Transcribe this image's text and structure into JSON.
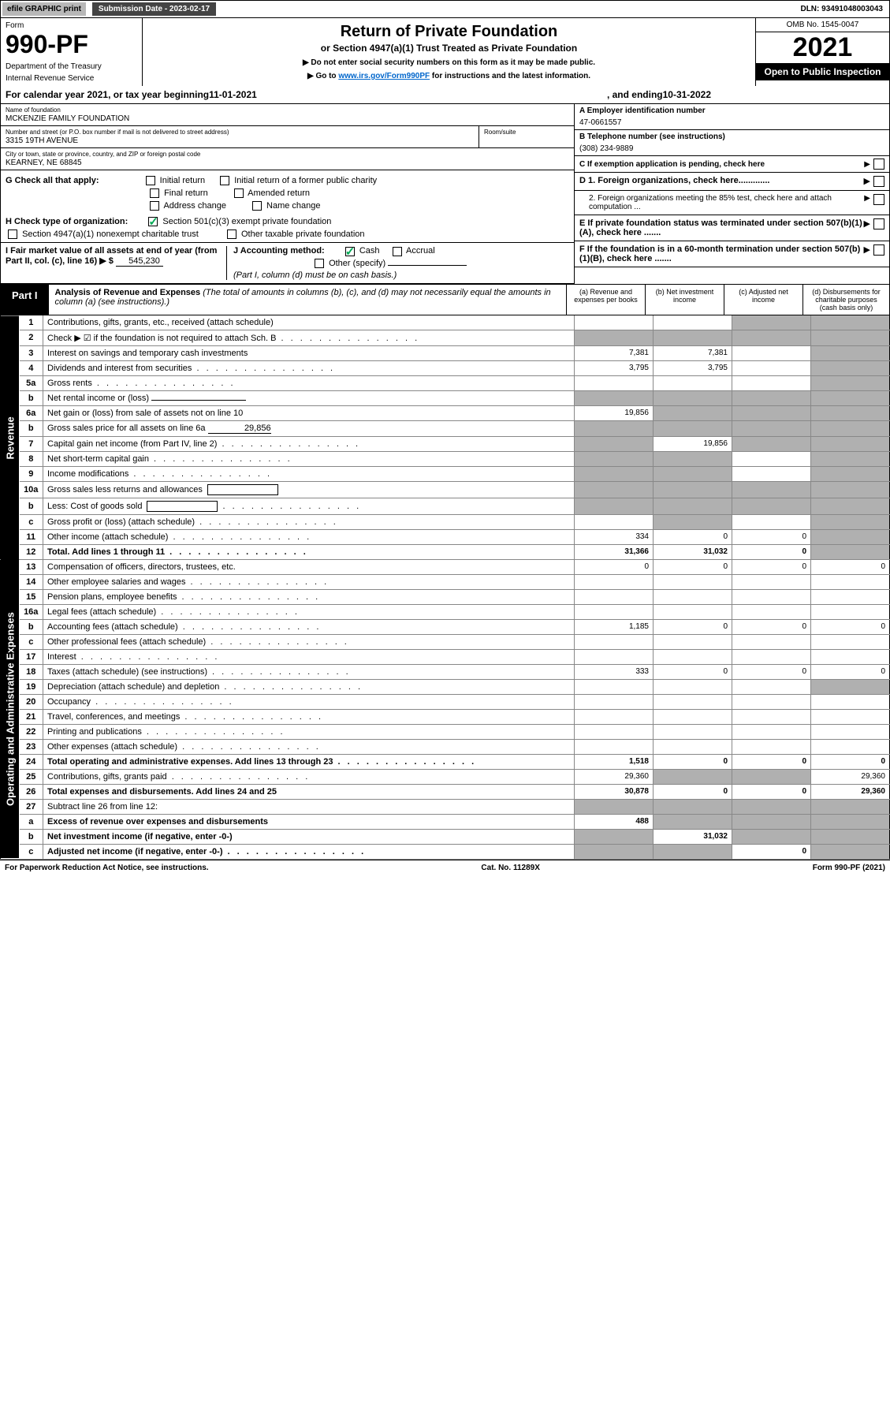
{
  "colors": {
    "header_gray": "#b8b8b8",
    "dark_gray": "#444444",
    "black": "#000000",
    "white": "#ffffff",
    "link_blue": "#0066cc",
    "shaded_cell": "#b0b0b0",
    "check_green": "#00aa55",
    "border_light": "#888888"
  },
  "topbar": {
    "efile": "efile GRAPHIC print",
    "sub_label": "Submission Date - 2023-02-17",
    "dln": "DLN: 93491048003043"
  },
  "header": {
    "form_label": "Form",
    "form_no": "990-PF",
    "dept": "Department of the Treasury",
    "irs": "Internal Revenue Service",
    "title1": "Return of Private Foundation",
    "title2": "or Section 4947(a)(1) Trust Treated as Private Foundation",
    "note1": "▶ Do not enter social security numbers on this form as it may be made public.",
    "note2_pre": "▶ Go to ",
    "note2_link": "www.irs.gov/Form990PF",
    "note2_post": " for instructions and the latest information.",
    "omb": "OMB No. 1545-0047",
    "year": "2021",
    "open": "Open to Public Inspection"
  },
  "cal_year": {
    "pre": "For calendar year 2021, or tax year beginning ",
    "begin": "11-01-2021",
    "mid": " , and ending ",
    "end": "10-31-2022"
  },
  "info": {
    "name_label": "Name of foundation",
    "name": "MCKENZIE FAMILY FOUNDATION",
    "addr_label": "Number and street (or P.O. box number if mail is not delivered to street address)",
    "addr": "3315 19TH AVENUE",
    "room_label": "Room/suite",
    "city_label": "City or town, state or province, country, and ZIP or foreign postal code",
    "city": "KEARNEY, NE  68845",
    "a_label": "A Employer identification number",
    "a_val": "47-0661557",
    "b_label": "B Telephone number (see instructions)",
    "b_val": "(308) 234-9889",
    "c_label": "C If exemption application is pending, check here",
    "d1_label": "D 1. Foreign organizations, check here.............",
    "d2_label": "2. Foreign organizations meeting the 85% test, check here and attach computation ...",
    "e_label": "E  If private foundation status was terminated under section 507(b)(1)(A), check here .......",
    "f_label": "F  If the foundation is in a 60-month termination under section 507(b)(1)(B), check here ......."
  },
  "g": {
    "label": "G Check all that apply:",
    "o1": "Initial return",
    "o2": "Initial return of a former public charity",
    "o3": "Final return",
    "o4": "Amended return",
    "o5": "Address change",
    "o6": "Name change"
  },
  "h": {
    "label": "H Check type of organization:",
    "o1": "Section 501(c)(3) exempt private foundation",
    "o2": "Section 4947(a)(1) nonexempt charitable trust",
    "o3": "Other taxable private foundation"
  },
  "i": {
    "label": "I Fair market value of all assets at end of year (from Part II, col. (c), line 16) ▶ $",
    "val": "545,230"
  },
  "j": {
    "label": "J Accounting method:",
    "o1": "Cash",
    "o2": "Accrual",
    "o3": "Other (specify)",
    "note": "(Part I, column (d) must be on cash basis.)"
  },
  "part1": {
    "tab": "Part I",
    "title": "Analysis of Revenue and Expenses",
    "desc": " (The total of amounts in columns (b), (c), and (d) may not necessarily equal the amounts in column (a) (see instructions).)",
    "col_a": "(a) Revenue and expenses per books",
    "col_b": "(b) Net investment income",
    "col_c": "(c) Adjusted net income",
    "col_d": "(d) Disbursements for charitable purposes (cash basis only)"
  },
  "side_labels": {
    "revenue": "Revenue",
    "opex": "Operating and Administrative Expenses"
  },
  "rows": [
    {
      "n": "1",
      "label": "Contributions, gifts, grants, etc., received (attach schedule)",
      "a": "",
      "b": "",
      "c": "s",
      "d": "s"
    },
    {
      "n": "2",
      "label": "Check ▶ ☑ if the foundation is not required to attach Sch. B",
      "a": "s",
      "b": "s",
      "c": "s",
      "d": "s",
      "dots": true
    },
    {
      "n": "3",
      "label": "Interest on savings and temporary cash investments",
      "a": "7,381",
      "b": "7,381",
      "c": "",
      "d": "s"
    },
    {
      "n": "4",
      "label": "Dividends and interest from securities",
      "a": "3,795",
      "b": "3,795",
      "c": "",
      "d": "s",
      "dots": true
    },
    {
      "n": "5a",
      "label": "Gross rents",
      "a": "",
      "b": "",
      "c": "",
      "d": "s",
      "dots": true
    },
    {
      "n": "b",
      "label": "Net rental income or (loss)",
      "a": "s",
      "b": "s",
      "c": "s",
      "d": "s",
      "inline": true
    },
    {
      "n": "6a",
      "label": "Net gain or (loss) from sale of assets not on line 10",
      "a": "19,856",
      "b": "s",
      "c": "s",
      "d": "s"
    },
    {
      "n": "b",
      "label": "Gross sales price for all assets on line 6a",
      "a": "s",
      "b": "s",
      "c": "s",
      "d": "s",
      "inline_val": "29,856"
    },
    {
      "n": "7",
      "label": "Capital gain net income (from Part IV, line 2)",
      "a": "s",
      "b": "19,856",
      "c": "s",
      "d": "s",
      "dots": true
    },
    {
      "n": "8",
      "label": "Net short-term capital gain",
      "a": "s",
      "b": "s",
      "c": "",
      "d": "s",
      "dots": true
    },
    {
      "n": "9",
      "label": "Income modifications",
      "a": "s",
      "b": "s",
      "c": "",
      "d": "s",
      "dots": true
    },
    {
      "n": "10a",
      "label": "Gross sales less returns and allowances",
      "a": "s",
      "b": "s",
      "c": "s",
      "d": "s",
      "box": true
    },
    {
      "n": "b",
      "label": "Less: Cost of goods sold",
      "a": "s",
      "b": "s",
      "c": "s",
      "d": "s",
      "box": true,
      "dots": true
    },
    {
      "n": "c",
      "label": "Gross profit or (loss) (attach schedule)",
      "a": "",
      "b": "s",
      "c": "",
      "d": "s",
      "dots": true
    },
    {
      "n": "11",
      "label": "Other income (attach schedule)",
      "a": "334",
      "b": "0",
      "c": "0",
      "d": "s",
      "dots": true
    },
    {
      "n": "12",
      "label": "Total. Add lines 1 through 11",
      "a": "31,366",
      "b": "31,032",
      "c": "0",
      "d": "s",
      "bold": true,
      "dots": true
    },
    {
      "n": "13",
      "label": "Compensation of officers, directors, trustees, etc.",
      "a": "0",
      "b": "0",
      "c": "0",
      "d": "0"
    },
    {
      "n": "14",
      "label": "Other employee salaries and wages",
      "a": "",
      "b": "",
      "c": "",
      "d": "",
      "dots": true
    },
    {
      "n": "15",
      "label": "Pension plans, employee benefits",
      "a": "",
      "b": "",
      "c": "",
      "d": "",
      "dots": true
    },
    {
      "n": "16a",
      "label": "Legal fees (attach schedule)",
      "a": "",
      "b": "",
      "c": "",
      "d": "",
      "dots": true
    },
    {
      "n": "b",
      "label": "Accounting fees (attach schedule)",
      "a": "1,185",
      "b": "0",
      "c": "0",
      "d": "0",
      "dots": true
    },
    {
      "n": "c",
      "label": "Other professional fees (attach schedule)",
      "a": "",
      "b": "",
      "c": "",
      "d": "",
      "dots": true
    },
    {
      "n": "17",
      "label": "Interest",
      "a": "",
      "b": "",
      "c": "",
      "d": "",
      "dots": true
    },
    {
      "n": "18",
      "label": "Taxes (attach schedule) (see instructions)",
      "a": "333",
      "b": "0",
      "c": "0",
      "d": "0",
      "dots": true
    },
    {
      "n": "19",
      "label": "Depreciation (attach schedule) and depletion",
      "a": "",
      "b": "",
      "c": "",
      "d": "s",
      "dots": true
    },
    {
      "n": "20",
      "label": "Occupancy",
      "a": "",
      "b": "",
      "c": "",
      "d": "",
      "dots": true
    },
    {
      "n": "21",
      "label": "Travel, conferences, and meetings",
      "a": "",
      "b": "",
      "c": "",
      "d": "",
      "dots": true
    },
    {
      "n": "22",
      "label": "Printing and publications",
      "a": "",
      "b": "",
      "c": "",
      "d": "",
      "dots": true
    },
    {
      "n": "23",
      "label": "Other expenses (attach schedule)",
      "a": "",
      "b": "",
      "c": "",
      "d": "",
      "dots": true
    },
    {
      "n": "24",
      "label": "Total operating and administrative expenses. Add lines 13 through 23",
      "a": "1,518",
      "b": "0",
      "c": "0",
      "d": "0",
      "bold": true,
      "dots": true
    },
    {
      "n": "25",
      "label": "Contributions, gifts, grants paid",
      "a": "29,360",
      "b": "s",
      "c": "s",
      "d": "29,360",
      "dots": true
    },
    {
      "n": "26",
      "label": "Total expenses and disbursements. Add lines 24 and 25",
      "a": "30,878",
      "b": "0",
      "c": "0",
      "d": "29,360",
      "bold": true
    },
    {
      "n": "27",
      "label": "Subtract line 26 from line 12:",
      "a": "s",
      "b": "s",
      "c": "s",
      "d": "s"
    },
    {
      "n": "a",
      "label": "Excess of revenue over expenses and disbursements",
      "a": "488",
      "b": "s",
      "c": "s",
      "d": "s",
      "bold": true
    },
    {
      "n": "b",
      "label": "Net investment income (if negative, enter -0-)",
      "a": "s",
      "b": "31,032",
      "c": "s",
      "d": "s",
      "bold": true
    },
    {
      "n": "c",
      "label": "Adjusted net income (if negative, enter -0-)",
      "a": "s",
      "b": "s",
      "c": "0",
      "d": "s",
      "bold": true,
      "dots": true
    }
  ],
  "footer": {
    "left": "For Paperwork Reduction Act Notice, see instructions.",
    "mid": "Cat. No. 11289X",
    "right": "Form 990-PF (2021)"
  }
}
